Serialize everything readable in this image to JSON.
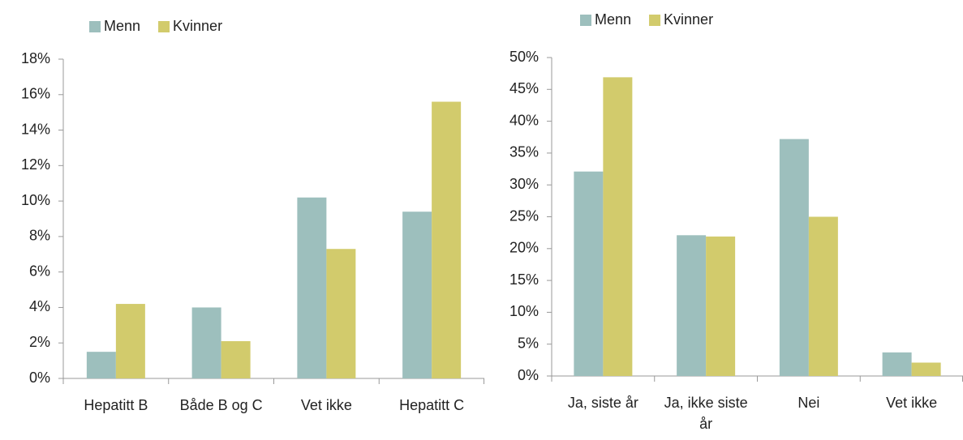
{
  "chart_data": [
    {
      "type": "bar",
      "categories": [
        "Hepatitt B",
        "Både B og C",
        "Vet ikke",
        "Hepatitt C"
      ],
      "series": [
        {
          "name": "Menn",
          "color": "#9dbfbd",
          "values": [
            1.5,
            4.0,
            10.2,
            9.4
          ]
        },
        {
          "name": "Kvinner",
          "color": "#d2cb6c",
          "values": [
            4.2,
            2.1,
            7.3,
            15.6
          ]
        }
      ],
      "ylim": [
        0,
        18
      ],
      "yticks": [
        {
          "value": 0,
          "label": "0%"
        },
        {
          "value": 2,
          "label": "2%"
        },
        {
          "value": 4,
          "label": "4%"
        },
        {
          "value": 6,
          "label": "6%"
        },
        {
          "value": 8,
          "label": "8%"
        },
        {
          "value": 10,
          "label": "10%"
        },
        {
          "value": 12,
          "label": "12%"
        },
        {
          "value": 14,
          "label": "14%"
        },
        {
          "value": 16,
          "label": "16%"
        },
        {
          "value": 18,
          "label": "18%"
        }
      ]
    },
    {
      "type": "bar",
      "categories": [
        "Ja, siste år",
        "Ja, ikke siste år",
        "Nei",
        "Vet ikke"
      ],
      "series": [
        {
          "name": "Menn",
          "color": "#9dbfbd",
          "values": [
            32.1,
            22.1,
            37.2,
            3.7
          ]
        },
        {
          "name": "Kvinner",
          "color": "#d2cb6c",
          "values": [
            46.9,
            21.9,
            25.0,
            2.1
          ]
        }
      ],
      "ylim": [
        0,
        50
      ],
      "yticks": [
        {
          "value": 0,
          "label": "0%"
        },
        {
          "value": 5,
          "label": "5%"
        },
        {
          "value": 10,
          "label": "10%"
        },
        {
          "value": 15,
          "label": "15%"
        },
        {
          "value": 20,
          "label": "20%"
        },
        {
          "value": 25,
          "label": "25%"
        },
        {
          "value": 30,
          "label": "30%"
        },
        {
          "value": 35,
          "label": "35%"
        },
        {
          "value": 40,
          "label": "40%"
        },
        {
          "value": 45,
          "label": "45%"
        },
        {
          "value": 50,
          "label": "50%"
        }
      ]
    }
  ]
}
